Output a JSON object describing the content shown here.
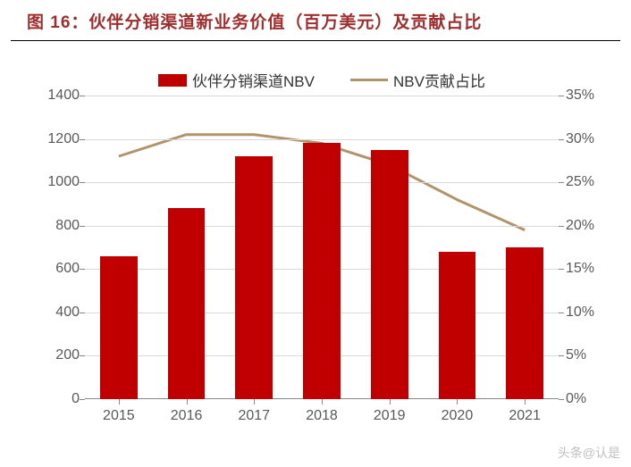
{
  "title": "图 16：伙伴分销渠道新业务价值（百万美元）及贡献占比",
  "legend": {
    "bar_label": "伙伴分销渠道NBV",
    "line_label": "NBV贡献占比"
  },
  "chart": {
    "type": "bar+line",
    "categories": [
      "2015",
      "2016",
      "2017",
      "2018",
      "2019",
      "2020",
      "2021"
    ],
    "bar_values": [
      660,
      880,
      1120,
      1180,
      1150,
      680,
      700
    ],
    "line_values_pct": [
      28,
      30.5,
      30.5,
      29.5,
      27,
      23,
      19.5
    ],
    "bar_color": "#c00000",
    "line_color": "#b0946b",
    "line_width": 3,
    "bar_width_ratio": 0.55,
    "y_left": {
      "min": 0,
      "max": 1400,
      "step": 200
    },
    "y_right": {
      "min": 0,
      "max": 35,
      "step": 5,
      "suffix": "%"
    },
    "grid_color": "#d9d9d9",
    "axis_label_color": "#595959",
    "background": "#ffffff",
    "title_color": "#9e2e2e",
    "title_fontsize": 19,
    "label_fontsize": 16
  },
  "watermark": "头条@认是"
}
